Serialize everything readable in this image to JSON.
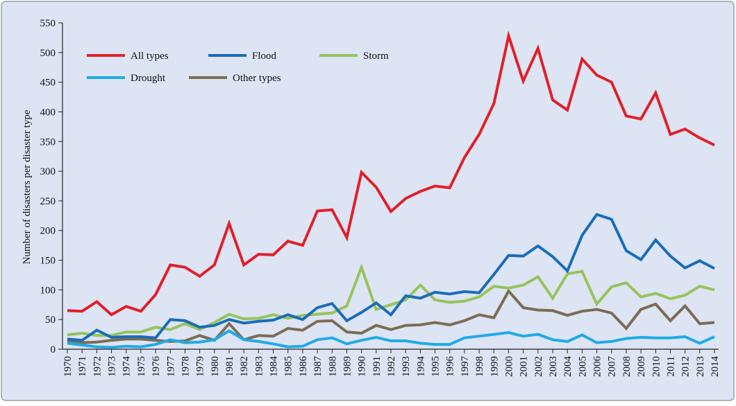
{
  "chart_data": {
    "type": "line",
    "ylabel": "Number of disasters per disaster type",
    "categories": [
      "1970",
      "1971",
      "1972",
      "1973",
      "1974",
      "1975",
      "1976",
      "1977",
      "1978",
      "1979",
      "1980",
      "1981",
      "1982",
      "1983",
      "1984",
      "1985",
      "1986",
      "1987",
      "1988",
      "1989",
      "1990",
      "1991",
      "1992",
      "1993",
      "1994",
      "1995",
      "1996",
      "1997",
      "1998",
      "1999",
      "2000",
      "2001",
      "2002",
      "2003",
      "2004",
      "2005",
      "2006",
      "2007",
      "2008",
      "2009",
      "2010",
      "2011",
      "2012",
      "2013",
      "2014"
    ],
    "series": [
      {
        "name": "All types",
        "color": "#e0202a",
        "values": [
          65,
          64,
          80,
          58,
          72,
          64,
          92,
          142,
          138,
          123,
          142,
          212,
          142,
          160,
          159,
          182,
          175,
          233,
          235,
          188,
          298,
          273,
          232,
          254,
          266,
          275,
          272,
          323,
          362,
          414,
          528,
          452,
          507,
          420,
          403,
          489,
          462,
          450,
          393,
          388,
          432,
          362,
          371,
          356,
          344
        ]
      },
      {
        "name": "Flood",
        "color": "#1a6db7",
        "values": [
          17,
          15,
          32,
          20,
          21,
          21,
          19,
          50,
          48,
          37,
          40,
          50,
          44,
          47,
          49,
          58,
          50,
          70,
          77,
          48,
          62,
          78,
          58,
          90,
          86,
          96,
          93,
          97,
          95,
          126,
          158,
          157,
          174,
          156,
          132,
          192,
          227,
          219,
          166,
          151,
          184,
          157,
          137,
          149,
          136
        ]
      },
      {
        "name": "Storm",
        "color": "#96c35c",
        "values": [
          24,
          27,
          23,
          23,
          29,
          29,
          37,
          33,
          43,
          33,
          45,
          59,
          51,
          52,
          58,
          52,
          57,
          59,
          61,
          73,
          138,
          67,
          75,
          83,
          108,
          83,
          79,
          81,
          88,
          106,
          103,
          108,
          122,
          86,
          127,
          131,
          76,
          105,
          112,
          88,
          94,
          85,
          91,
          106,
          100
        ]
      },
      {
        "name": "Drought",
        "color": "#20aae6",
        "values": [
          10,
          7,
          4,
          3,
          5,
          4,
          8,
          16,
          11,
          12,
          16,
          31,
          16,
          13,
          9,
          4,
          5,
          16,
          19,
          9,
          15,
          20,
          14,
          14,
          10,
          8,
          8,
          19,
          22,
          25,
          28,
          22,
          25,
          16,
          13,
          24,
          11,
          13,
          18,
          20,
          19,
          19,
          21,
          10,
          21
        ]
      },
      {
        "name": "Other types",
        "color": "#7c6c55",
        "values": [
          13,
          11,
          12,
          15,
          17,
          17,
          15,
          13,
          14,
          23,
          15,
          43,
          16,
          23,
          22,
          35,
          32,
          47,
          48,
          29,
          27,
          40,
          33,
          40,
          41,
          45,
          41,
          48,
          58,
          53,
          98,
          70,
          66,
          65,
          57,
          64,
          67,
          61,
          35,
          67,
          76,
          48,
          73,
          43,
          45
        ]
      }
    ],
    "ylim": [
      0,
      550
    ],
    "yticks": [
      0,
      50,
      100,
      150,
      200,
      250,
      300,
      350,
      400,
      450,
      500,
      550
    ],
    "legend": "upper left",
    "grid": false
  }
}
